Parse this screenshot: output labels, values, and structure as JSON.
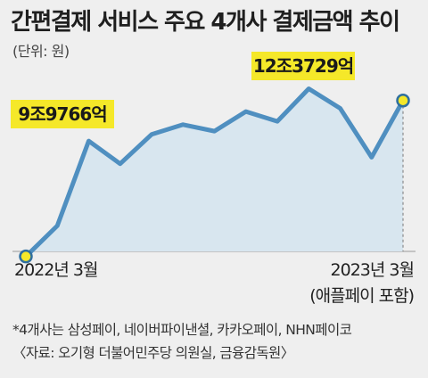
{
  "chart_data": {
    "type": "area",
    "title": "간편결제 서비스 주요 4개사 결제금액 추이",
    "unit_label": "(단위: 원)",
    "x_start_label": "2022년 3월",
    "x_end_label": "2023년 3월",
    "x_end_sublabel": "(애플페이 포함)",
    "series": [
      {
        "values": [
          9.98,
          10.45,
          11.75,
          11.4,
          11.85,
          12.0,
          11.9,
          12.2,
          12.05,
          12.55,
          12.25,
          11.5,
          12.37
        ]
      }
    ],
    "ylim": [
      8.5,
      13.5
    ],
    "callouts": [
      {
        "index": 0,
        "label": "9조9766억"
      },
      {
        "index": 12,
        "label": "12조3729억"
      }
    ],
    "colors": {
      "line": "#4f8fc0",
      "area": "#d8e6ef",
      "callout_bg": "#f5e829",
      "marker": "#f5e829"
    }
  },
  "notes": {
    "line1": "*4개사는 삼성페이, 네이버파이낸셜, 카카오페이, NHN페이코",
    "line2": "〈자료: 오기형 더불어민주당 의원실, 금융감독원〉"
  }
}
